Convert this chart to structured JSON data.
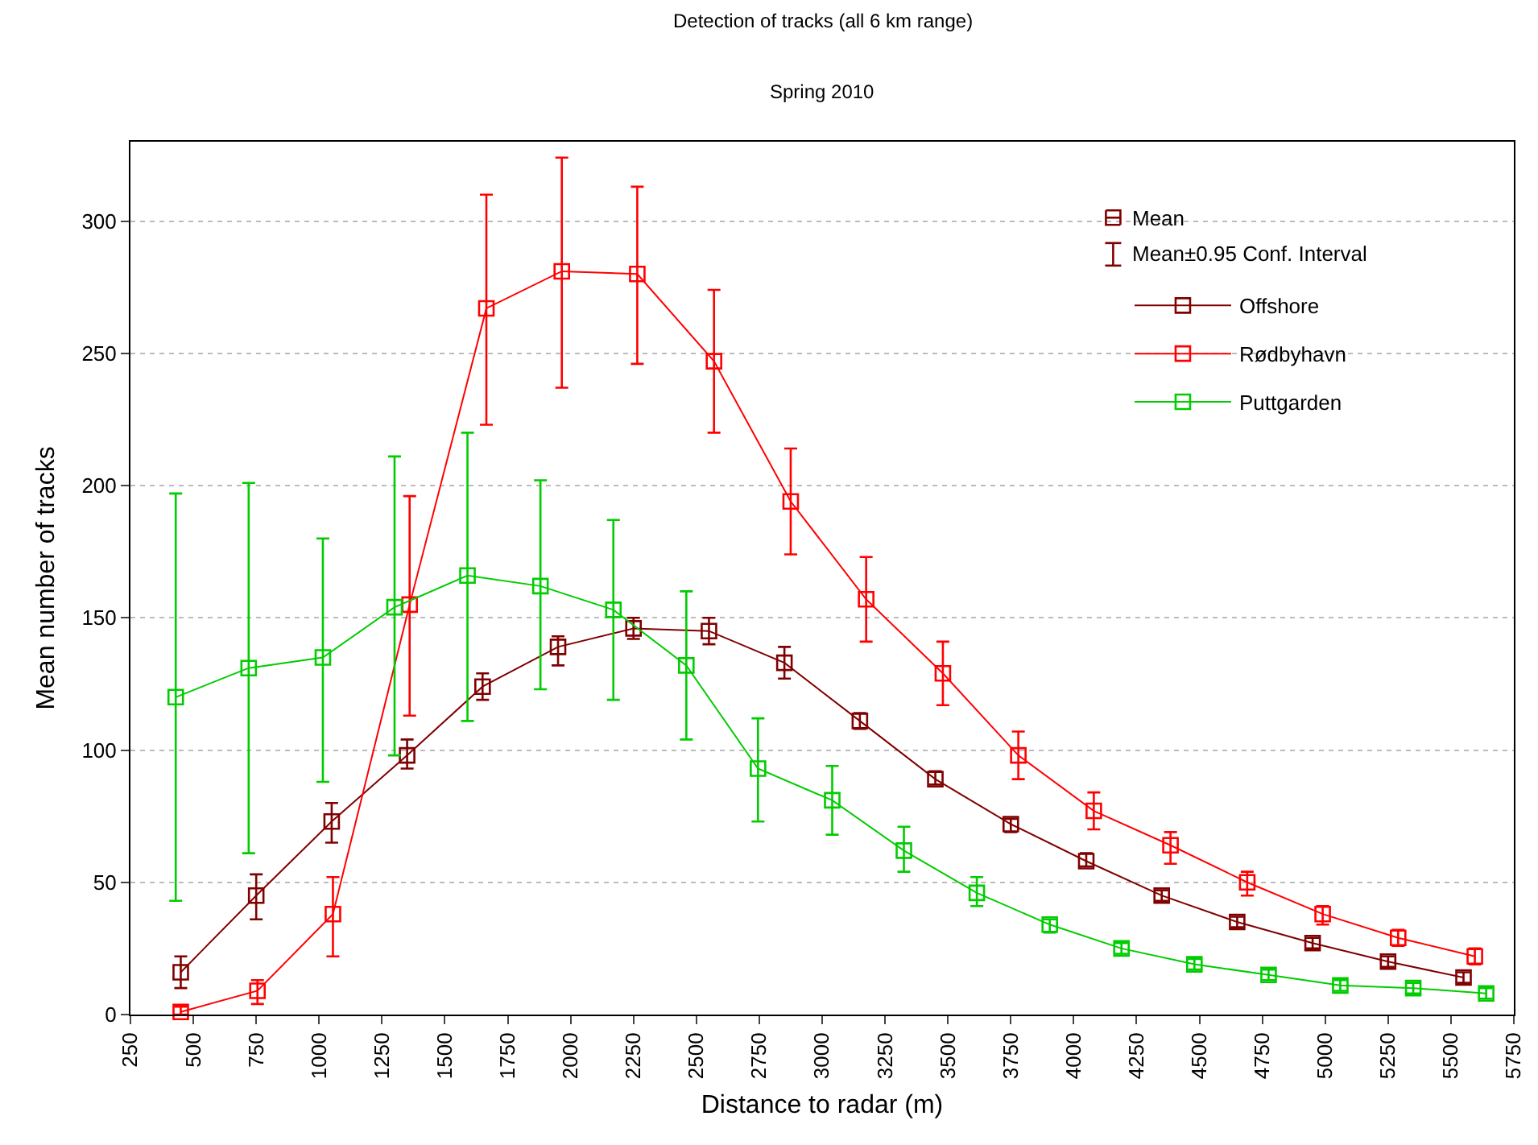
{
  "chart_data": {
    "type": "line",
    "title": "Detection of tracks (all 6 km range)",
    "subtitle": "Spring 2010",
    "xlabel": "Distance to radar (m)",
    "ylabel": "Mean number of tracks",
    "xlim": [
      250,
      5750
    ],
    "xticks": [
      250,
      500,
      750,
      1000,
      1250,
      1500,
      1750,
      2000,
      2250,
      2500,
      2750,
      3000,
      3250,
      3500,
      3750,
      4000,
      4250,
      4500,
      4750,
      5000,
      5250,
      5500,
      5750
    ],
    "ylim": [
      0,
      330
    ],
    "yticks": [
      0,
      50,
      100,
      150,
      200,
      250,
      300
    ],
    "grid": "y",
    "legend": "top right",
    "marker": "square",
    "line_style": "solid",
    "annotations": [
      "Mean",
      "Mean±0.95 Conf. Interval"
    ],
    "series": [
      {
        "name": "Offshore",
        "color": "#800000",
        "x": [
          450,
          750,
          1050,
          1350,
          1650,
          1950,
          2250,
          2550,
          2850,
          3150,
          3450,
          3750,
          4050,
          4350,
          4650,
          4950,
          5250,
          5550
        ],
        "values": [
          16,
          45,
          73,
          98,
          124,
          139,
          146,
          145,
          133,
          111,
          89,
          72,
          58,
          45,
          35,
          27,
          20,
          14
        ],
        "errors": [
          [
            10,
            22
          ],
          [
            36,
            53
          ],
          [
            65,
            80
          ],
          [
            93,
            104
          ],
          [
            119,
            129
          ],
          [
            132,
            143
          ],
          [
            142,
            150
          ],
          [
            140,
            150
          ],
          [
            127,
            139
          ],
          [
            108,
            114
          ],
          [
            87,
            92
          ],
          [
            69,
            74
          ],
          [
            56,
            61
          ],
          [
            43,
            47
          ],
          [
            33,
            37
          ],
          [
            25,
            29
          ],
          [
            18,
            22
          ],
          [
            12,
            16
          ]
        ]
      },
      {
        "name": "Rødbyhavn",
        "color": "#ff0000",
        "x": [
          450,
          755,
          1055,
          1360,
          1665,
          1965,
          2265,
          2570,
          2875,
          3175,
          3480,
          3780,
          4080,
          4385,
          4690,
          4990,
          5290,
          5595
        ],
        "values": [
          1,
          9,
          38,
          155,
          267,
          281,
          280,
          247,
          194,
          157,
          129,
          98,
          77,
          64,
          50,
          38,
          29,
          22
        ],
        "errors": [
          [
            0,
            3
          ],
          [
            4,
            13
          ],
          [
            22,
            52
          ],
          [
            113,
            196
          ],
          [
            223,
            310
          ],
          [
            237,
            324
          ],
          [
            246,
            313
          ],
          [
            220,
            274
          ],
          [
            174,
            214
          ],
          [
            141,
            173
          ],
          [
            117,
            141
          ],
          [
            89,
            107
          ],
          [
            70,
            84
          ],
          [
            57,
            69
          ],
          [
            45,
            54
          ],
          [
            34,
            41
          ],
          [
            26,
            32
          ],
          [
            19,
            25
          ]
        ]
      },
      {
        "name": "Puttgarden",
        "color": "#00cc00",
        "x": [
          430,
          720,
          1015,
          1300,
          1590,
          1880,
          2170,
          2460,
          2745,
          3040,
          3325,
          3615,
          3905,
          4190,
          4480,
          4775,
          5060,
          5350,
          5640
        ],
        "values": [
          120,
          131,
          135,
          154,
          166,
          162,
          153,
          132,
          93,
          81,
          62,
          46,
          34,
          25,
          19,
          15,
          11,
          10,
          8
        ],
        "errors": [
          [
            43,
            197
          ],
          [
            61,
            201
          ],
          [
            88,
            180
          ],
          [
            98,
            211
          ],
          [
            111,
            220
          ],
          [
            123,
            202
          ],
          [
            119,
            187
          ],
          [
            104,
            160
          ],
          [
            73,
            112
          ],
          [
            68,
            94
          ],
          [
            54,
            71
          ],
          [
            41,
            52
          ],
          [
            31,
            36
          ],
          [
            23,
            27
          ],
          [
            17,
            21
          ],
          [
            13,
            17
          ],
          [
            9,
            13
          ],
          [
            8,
            12
          ],
          [
            6,
            10
          ]
        ]
      }
    ]
  }
}
